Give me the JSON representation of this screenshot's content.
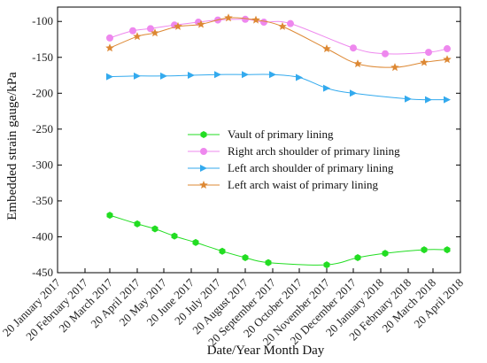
{
  "chart_data": {
    "type": "line",
    "title": "",
    "xlabel": "Date/Year Month Day",
    "ylabel": "Embedded strain gauge/kPa",
    "ylim": [
      -450,
      -80
    ],
    "yticks": [
      -100,
      -150,
      -200,
      -250,
      -300,
      -350,
      -400,
      -450
    ],
    "xlim": [
      "2017-01-20",
      "2018-04-20"
    ],
    "xticks": [
      {
        "date": "2017-01-20",
        "label": "20 January 2017"
      },
      {
        "date": "2017-02-20",
        "label": "20 February 2017"
      },
      {
        "date": "2017-03-20",
        "label": "20 March 2017"
      },
      {
        "date": "2017-04-20",
        "label": "20 April 2017"
      },
      {
        "date": "2017-05-20",
        "label": "20 May 2017"
      },
      {
        "date": "2017-06-20",
        "label": "20 June 2017"
      },
      {
        "date": "2017-07-20",
        "label": "20 July 2017"
      },
      {
        "date": "2017-08-20",
        "label": "20 August 2017"
      },
      {
        "date": "2017-09-20",
        "label": "20 September 2017"
      },
      {
        "date": "2017-10-20",
        "label": "20 October 2017"
      },
      {
        "date": "2017-11-20",
        "label": "20 November 2017"
      },
      {
        "date": "2017-12-20",
        "label": "20 December 2017"
      },
      {
        "date": "2018-01-20",
        "label": "20 January 2018"
      },
      {
        "date": "2018-02-20",
        "label": "20 February 2018"
      },
      {
        "date": "2018-03-20",
        "label": "20 March 2018"
      },
      {
        "date": "2018-04-20",
        "label": "20 April 2018"
      }
    ],
    "legend_position": "center",
    "grid": false,
    "series": [
      {
        "name": "Vault of primary lining",
        "color": "#22dd22",
        "marker": "hexagon",
        "points": [
          {
            "x": "2017-03-20",
            "y": -370
          },
          {
            "x": "2017-04-20",
            "y": -382
          },
          {
            "x": "2017-05-10",
            "y": -389
          },
          {
            "x": "2017-06-01",
            "y": -399
          },
          {
            "x": "2017-06-25",
            "y": -408
          },
          {
            "x": "2017-07-25",
            "y": -420
          },
          {
            "x": "2017-08-20",
            "y": -429
          },
          {
            "x": "2017-09-15",
            "y": -436
          },
          {
            "x": "2017-11-20",
            "y": -439
          },
          {
            "x": "2017-12-25",
            "y": -429
          },
          {
            "x": "2018-01-25",
            "y": -423
          },
          {
            "x": "2018-03-10",
            "y": -418
          },
          {
            "x": "2018-04-05",
            "y": -418
          }
        ]
      },
      {
        "name": "Right arch shoulder of primary lining",
        "color": "#ee88ee",
        "marker": "circle",
        "points": [
          {
            "x": "2017-03-20",
            "y": -123
          },
          {
            "x": "2017-04-15",
            "y": -113
          },
          {
            "x": "2017-05-05",
            "y": -110
          },
          {
            "x": "2017-06-01",
            "y": -105
          },
          {
            "x": "2017-06-28",
            "y": -101
          },
          {
            "x": "2017-07-20",
            "y": -98
          },
          {
            "x": "2017-08-20",
            "y": -97
          },
          {
            "x": "2017-09-10",
            "y": -101
          },
          {
            "x": "2017-10-10",
            "y": -103
          },
          {
            "x": "2017-12-20",
            "y": -137
          },
          {
            "x": "2018-01-25",
            "y": -145
          },
          {
            "x": "2018-03-15",
            "y": -143
          },
          {
            "x": "2018-04-05",
            "y": -138
          }
        ]
      },
      {
        "name": "Left arch shoulder of primary lining",
        "color": "#33aaee",
        "marker": "triangle-right",
        "points": [
          {
            "x": "2017-03-20",
            "y": -177
          },
          {
            "x": "2017-04-20",
            "y": -176
          },
          {
            "x": "2017-05-20",
            "y": -176
          },
          {
            "x": "2017-06-20",
            "y": -175
          },
          {
            "x": "2017-07-20",
            "y": -174
          },
          {
            "x": "2017-08-20",
            "y": -174
          },
          {
            "x": "2017-09-20",
            "y": -174
          },
          {
            "x": "2017-10-20",
            "y": -178
          },
          {
            "x": "2017-11-20",
            "y": -193
          },
          {
            "x": "2017-12-20",
            "y": -200
          },
          {
            "x": "2018-02-20",
            "y": -208
          },
          {
            "x": "2018-03-15",
            "y": -209
          },
          {
            "x": "2018-04-05",
            "y": -209
          }
        ]
      },
      {
        "name": "Left arch waist of primary lining",
        "color": "#dd8833",
        "marker": "star",
        "points": [
          {
            "x": "2017-03-20",
            "y": -137
          },
          {
            "x": "2017-04-20",
            "y": -121
          },
          {
            "x": "2017-05-10",
            "y": -116
          },
          {
            "x": "2017-06-05",
            "y": -107
          },
          {
            "x": "2017-07-01",
            "y": -104
          },
          {
            "x": "2017-08-01",
            "y": -95
          },
          {
            "x": "2017-09-01",
            "y": -98
          },
          {
            "x": "2017-10-01",
            "y": -107
          },
          {
            "x": "2017-11-20",
            "y": -138
          },
          {
            "x": "2017-12-25",
            "y": -159
          },
          {
            "x": "2018-02-05",
            "y": -164
          },
          {
            "x": "2018-03-10",
            "y": -157
          },
          {
            "x": "2018-04-05",
            "y": -153
          }
        ]
      }
    ]
  }
}
